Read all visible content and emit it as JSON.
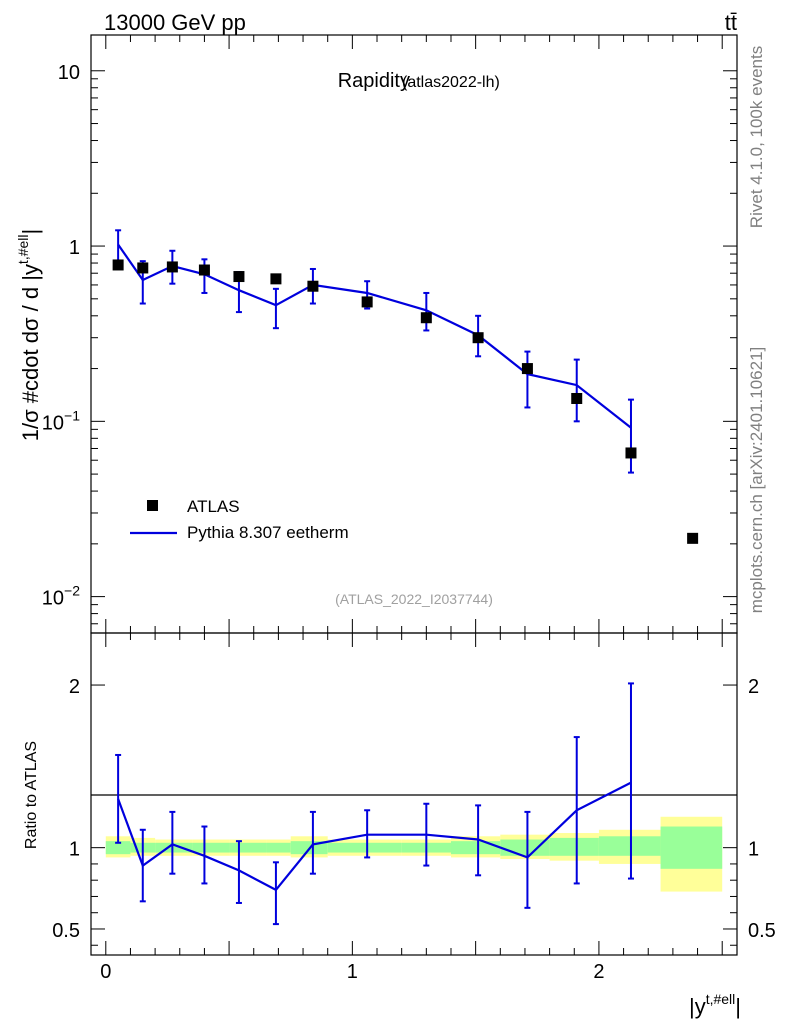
{
  "header": {
    "energy_label": "13000 GeV pp",
    "process_label": "tt̄"
  },
  "side_labels": {
    "rivet": "Rivet 4.1.0,  100k events",
    "mcplots": "mcplots.cern.ch [arXiv:2401.10621]"
  },
  "colors": {
    "mc": "#0000dd",
    "band_green": "#99ff99",
    "band_yellow": "#ffff99",
    "data": "#000000"
  },
  "chart_data": [
    {
      "panel": "main",
      "type": "scatter",
      "title": "Rapidity",
      "subtitle": "(atlas2022-lh)",
      "watermark": "(ATLAS_2022_I2037744)",
      "ylabel": "1/σ #cdot dσ / d |y^{t,#ell}|",
      "ylabel_main": "1/σ #cdot dσ / d |y",
      "ylabel_sup": "t,#ell",
      "ylabel_close": "|",
      "yscale": "log",
      "xlim": [
        -0.06,
        2.56
      ],
      "ylim": [
        0.0062,
        16
      ],
      "yticks": [
        {
          "value": 10,
          "base": "10",
          "exp": ""
        },
        {
          "value": 1,
          "base": "1",
          "exp": ""
        },
        {
          "value": 0.1,
          "base": "10",
          "exp": "−1"
        },
        {
          "value": 0.01,
          "base": "10",
          "exp": "−2"
        }
      ],
      "legend": {
        "position": "bottom-left",
        "entries": [
          "ATLAS",
          "Pythia 8.307 eetherm"
        ]
      },
      "series": [
        {
          "name": "ATLAS",
          "kind": "data",
          "x": [
            0.05,
            0.15,
            0.27,
            0.4,
            0.54,
            0.69,
            0.84,
            1.06,
            1.3,
            1.51,
            1.71,
            1.91,
            2.13,
            2.38
          ],
          "values": [
            0.78,
            0.75,
            0.76,
            0.73,
            0.67,
            0.65,
            0.59,
            0.48,
            0.39,
            0.3,
            0.2,
            0.135,
            0.066,
            0.0215
          ]
        },
        {
          "name": "Pythia 8.307 eetherm",
          "kind": "mc",
          "x": [
            0.05,
            0.15,
            0.27,
            0.4,
            0.54,
            0.69,
            0.84,
            1.06,
            1.3,
            1.51,
            1.71,
            1.91,
            2.13
          ],
          "values": [
            1.02,
            0.64,
            0.77,
            0.69,
            0.56,
            0.46,
            0.6,
            0.54,
            0.43,
            0.31,
            0.186,
            0.161,
            0.092
          ],
          "err_low": [
            0.82,
            0.47,
            0.61,
            0.54,
            0.42,
            0.34,
            0.47,
            0.44,
            0.33,
            0.235,
            0.12,
            0.1,
            0.051
          ],
          "err_high": [
            1.23,
            0.82,
            0.94,
            0.84,
            0.71,
            0.57,
            0.74,
            0.63,
            0.54,
            0.4,
            0.25,
            0.225,
            0.133
          ]
        }
      ]
    },
    {
      "panel": "ratio",
      "type": "line",
      "ylabel": "Ratio to ATLAS",
      "xlabel": "|y^{t,#ell}|",
      "xlabel_main": "|y",
      "xlabel_sup": "t,#ell",
      "xlabel_close": "|",
      "xlim": [
        -0.06,
        2.56
      ],
      "ylim": [
        0.34,
        2.32
      ],
      "yticks": [
        2,
        1,
        0.5
      ],
      "ytick_labels": [
        "2",
        "1",
        "0.5"
      ],
      "xticks": [
        0,
        1,
        2
      ],
      "xtick_labels": [
        "0",
        "1",
        "2"
      ],
      "bands": [
        {
          "x0": 0.0,
          "x1": 0.1,
          "green": [
            0.96,
            1.04
          ],
          "yellow": [
            0.94,
            1.07
          ]
        },
        {
          "x0": 0.1,
          "x1": 0.2,
          "green": [
            0.97,
            1.03
          ],
          "yellow": [
            0.95,
            1.06
          ]
        },
        {
          "x0": 0.2,
          "x1": 0.35,
          "green": [
            0.97,
            1.03
          ],
          "yellow": [
            0.95,
            1.05
          ]
        },
        {
          "x0": 0.35,
          "x1": 0.5,
          "green": [
            0.97,
            1.03
          ],
          "yellow": [
            0.95,
            1.05
          ]
        },
        {
          "x0": 0.5,
          "x1": 0.65,
          "green": [
            0.97,
            1.03
          ],
          "yellow": [
            0.95,
            1.05
          ]
        },
        {
          "x0": 0.65,
          "x1": 0.75,
          "green": [
            0.97,
            1.03
          ],
          "yellow": [
            0.95,
            1.05
          ]
        },
        {
          "x0": 0.75,
          "x1": 0.9,
          "green": [
            0.96,
            1.04
          ],
          "yellow": [
            0.94,
            1.07
          ]
        },
        {
          "x0": 0.9,
          "x1": 1.2,
          "green": [
            0.97,
            1.03
          ],
          "yellow": [
            0.95,
            1.05
          ]
        },
        {
          "x0": 1.2,
          "x1": 1.4,
          "green": [
            0.97,
            1.03
          ],
          "yellow": [
            0.95,
            1.05
          ]
        },
        {
          "x0": 1.4,
          "x1": 1.6,
          "green": [
            0.96,
            1.04
          ],
          "yellow": [
            0.94,
            1.07
          ]
        },
        {
          "x0": 1.6,
          "x1": 1.8,
          "green": [
            0.95,
            1.05
          ],
          "yellow": [
            0.93,
            1.08
          ]
        },
        {
          "x0": 1.8,
          "x1": 2.0,
          "green": [
            0.95,
            1.06
          ],
          "yellow": [
            0.92,
            1.09
          ]
        },
        {
          "x0": 2.0,
          "x1": 2.25,
          "green": [
            0.95,
            1.07
          ],
          "yellow": [
            0.9,
            1.11
          ]
        },
        {
          "x0": 2.25,
          "x1": 2.5,
          "green": [
            0.87,
            1.13
          ],
          "yellow": [
            0.73,
            1.19
          ]
        }
      ],
      "series": [
        {
          "name": "Pythia 8.307 eetherm / ATLAS",
          "x": [
            0.05,
            0.15,
            0.27,
            0.4,
            0.54,
            0.69,
            0.84,
            1.06,
            1.3,
            1.51,
            1.71,
            1.91,
            2.13
          ],
          "values": [
            1.3,
            0.89,
            1.02,
            0.95,
            0.86,
            0.74,
            1.02,
            1.08,
            1.08,
            1.05,
            0.94,
            1.23,
            1.4
          ],
          "err_low": [
            1.03,
            0.67,
            0.84,
            0.78,
            0.66,
            0.53,
            0.84,
            0.94,
            0.89,
            0.83,
            0.63,
            0.78,
            0.81
          ],
          "err_high": [
            1.57,
            1.11,
            1.22,
            1.13,
            1.04,
            0.91,
            1.22,
            1.23,
            1.27,
            1.26,
            1.22,
            1.68,
            2.01
          ]
        }
      ]
    }
  ]
}
